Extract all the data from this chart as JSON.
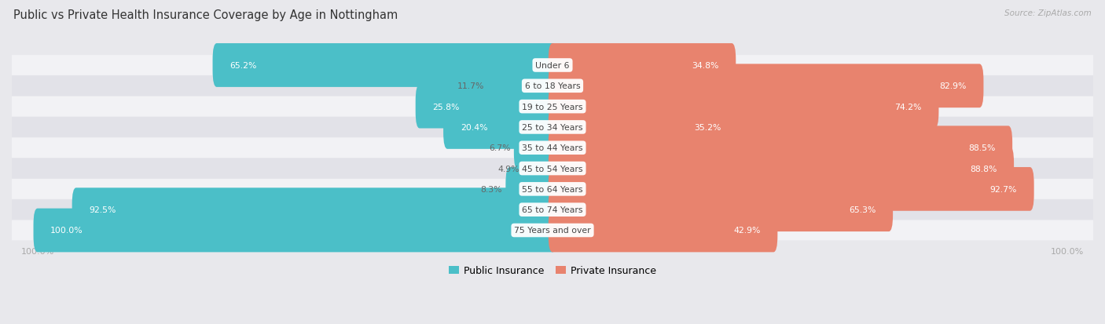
{
  "title": "Public vs Private Health Insurance Coverage by Age in Nottingham",
  "source": "Source: ZipAtlas.com",
  "categories": [
    "Under 6",
    "6 to 18 Years",
    "19 to 25 Years",
    "25 to 34 Years",
    "35 to 44 Years",
    "45 to 54 Years",
    "55 to 64 Years",
    "65 to 74 Years",
    "75 Years and over"
  ],
  "public_values": [
    65.2,
    11.7,
    25.8,
    20.4,
    6.7,
    4.9,
    8.3,
    92.5,
    100.0
  ],
  "private_values": [
    34.8,
    82.9,
    74.2,
    35.2,
    88.5,
    88.8,
    92.7,
    65.3,
    42.9
  ],
  "public_color": "#4BBFC8",
  "private_color": "#E8836E",
  "bg_color": "#e8e8ec",
  "row_light": "#f2f2f5",
  "row_dark": "#e2e2e8",
  "title_color": "#333333",
  "white_label": "#ffffff",
  "dark_label": "#666666",
  "axis_label_color": "#aaaaaa",
  "legend_public": "Public Insurance",
  "legend_private": "Private Insurance"
}
